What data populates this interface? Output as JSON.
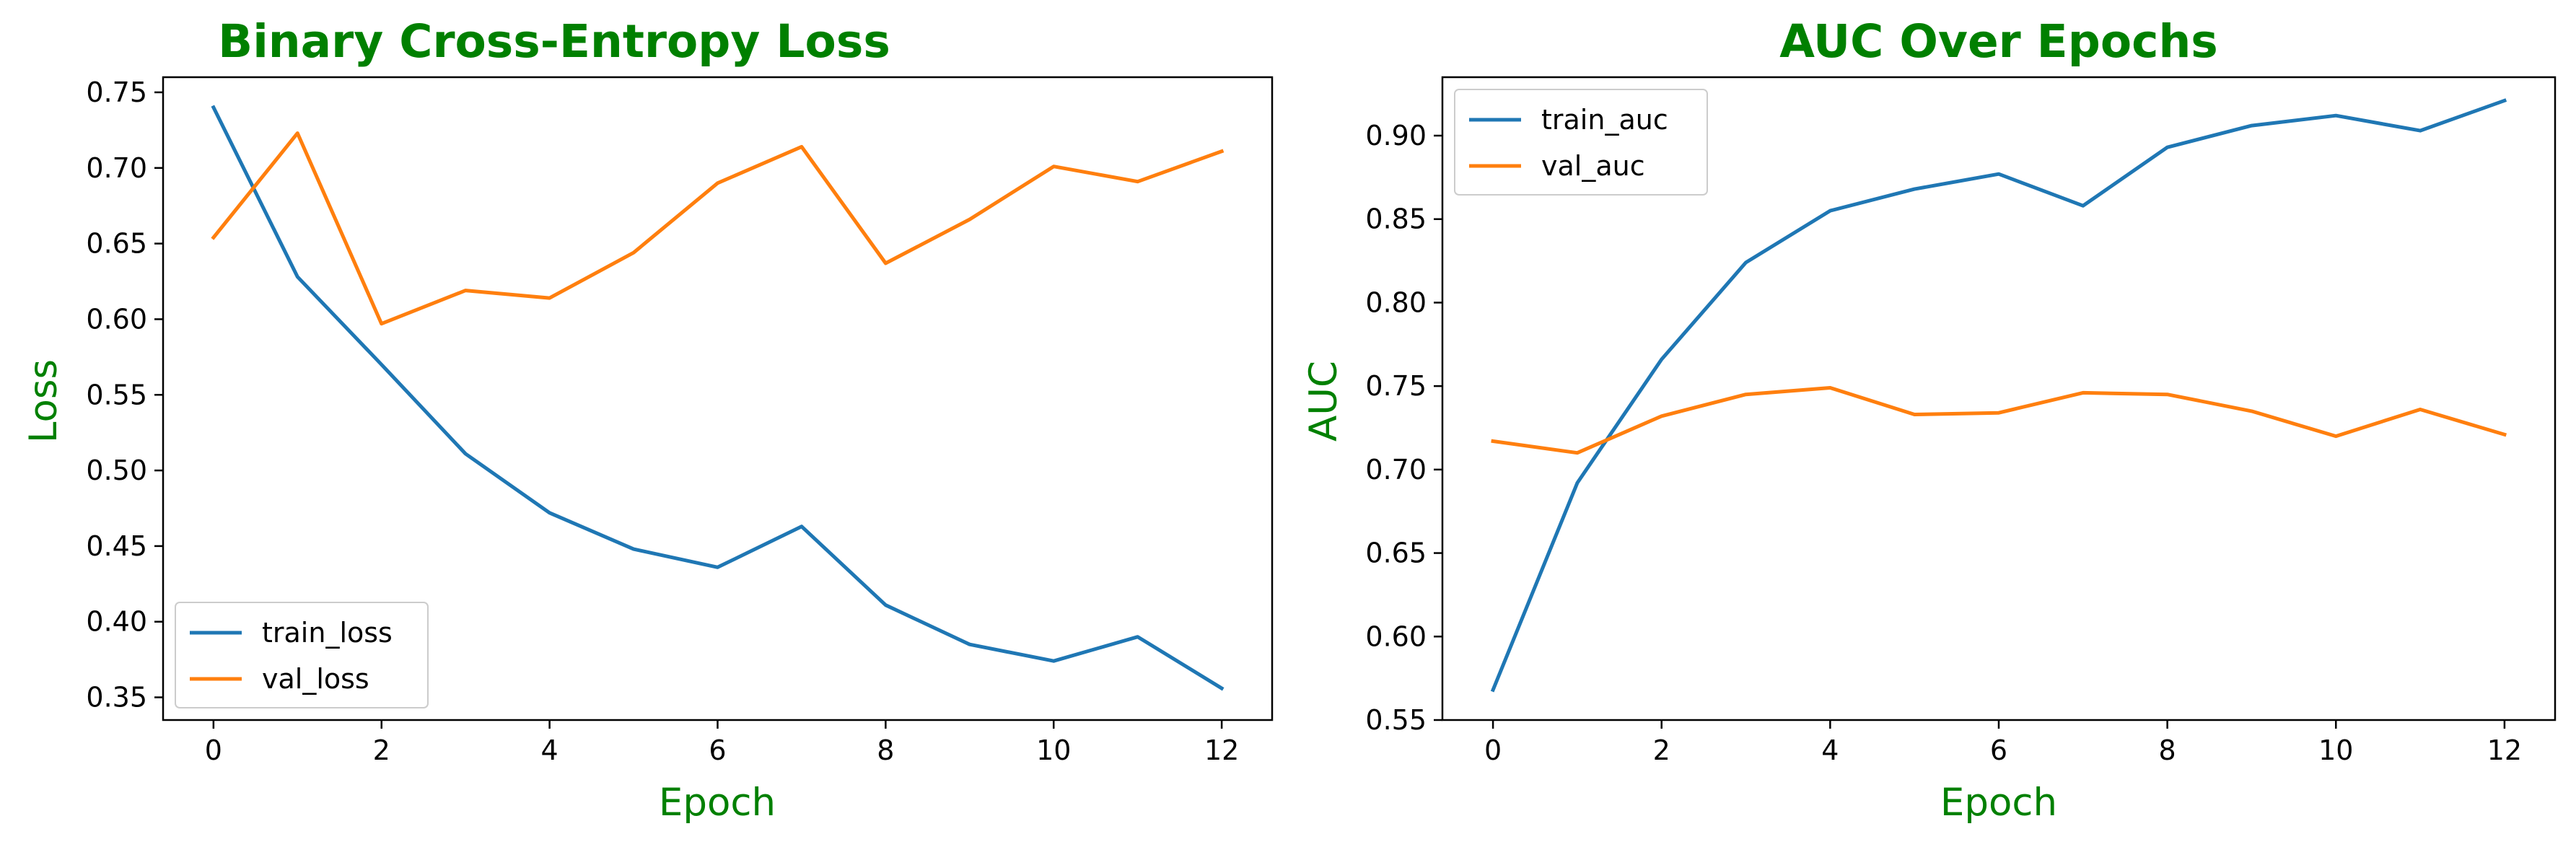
{
  "colors": {
    "title": "#008000",
    "axis_label": "#008000",
    "train": "#1f77b4",
    "val": "#ff7f0e",
    "axes": "#000000",
    "legend_border": "#cccccc"
  },
  "chart_data": [
    {
      "type": "line",
      "title": "Binary Cross-Entropy Loss",
      "xlabel": "Epoch",
      "ylabel": "Loss",
      "grid": false,
      "legend_position": "lower-left",
      "xlim": [
        -0.6,
        12.6
      ],
      "ylim": [
        0.335,
        0.76
      ],
      "xticks": [
        0,
        2,
        4,
        6,
        8,
        10,
        12
      ],
      "yticks": [
        0.35,
        0.4,
        0.45,
        0.5,
        0.55,
        0.6,
        0.65,
        0.7,
        0.75
      ],
      "xtick_labels": [
        "0",
        "2",
        "4",
        "6",
        "8",
        "10",
        "12"
      ],
      "ytick_labels": [
        "0.35",
        "0.40",
        "0.45",
        "0.50",
        "0.55",
        "0.60",
        "0.65",
        "0.70",
        "0.75"
      ],
      "x": [
        0,
        1,
        2,
        3,
        4,
        5,
        6,
        7,
        8,
        9,
        10,
        11,
        12
      ],
      "series": [
        {
          "name": "train_loss",
          "color": "#1f77b4",
          "values": [
            0.74,
            0.628,
            0.57,
            0.511,
            0.472,
            0.448,
            0.436,
            0.463,
            0.411,
            0.385,
            0.374,
            0.39,
            0.356
          ]
        },
        {
          "name": "val_loss",
          "color": "#ff7f0e",
          "values": [
            0.654,
            0.723,
            0.597,
            0.619,
            0.614,
            0.644,
            0.69,
            0.714,
            0.637,
            0.666,
            0.701,
            0.691,
            0.711
          ]
        }
      ]
    },
    {
      "type": "line",
      "title": "AUC Over Epochs",
      "xlabel": "Epoch",
      "ylabel": "AUC",
      "grid": false,
      "legend_position": "upper-left",
      "xlim": [
        -0.6,
        12.6
      ],
      "ylim": [
        0.55,
        0.935
      ],
      "xticks": [
        0,
        2,
        4,
        6,
        8,
        10,
        12
      ],
      "yticks": [
        0.55,
        0.6,
        0.65,
        0.7,
        0.75,
        0.8,
        0.85,
        0.9
      ],
      "xtick_labels": [
        "0",
        "2",
        "4",
        "6",
        "8",
        "10",
        "12"
      ],
      "ytick_labels": [
        "0.55",
        "0.60",
        "0.65",
        "0.70",
        "0.75",
        "0.80",
        "0.85",
        "0.90"
      ],
      "x": [
        0,
        1,
        2,
        3,
        4,
        5,
        6,
        7,
        8,
        9,
        10,
        11,
        12
      ],
      "series": [
        {
          "name": "train_auc",
          "color": "#1f77b4",
          "values": [
            0.568,
            0.692,
            0.766,
            0.824,
            0.855,
            0.868,
            0.877,
            0.858,
            0.893,
            0.906,
            0.912,
            0.903,
            0.921
          ]
        },
        {
          "name": "val_auc",
          "color": "#ff7f0e",
          "values": [
            0.717,
            0.71,
            0.732,
            0.745,
            0.749,
            0.733,
            0.734,
            0.746,
            0.745,
            0.735,
            0.72,
            0.736,
            0.721
          ]
        }
      ]
    }
  ]
}
